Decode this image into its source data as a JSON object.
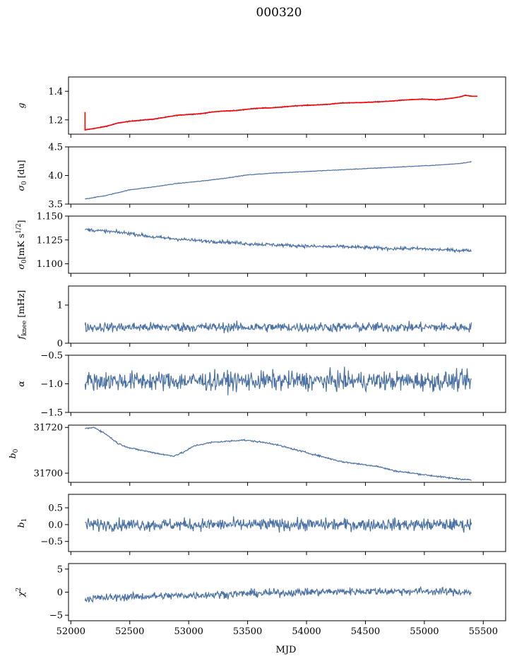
{
  "figure": {
    "title": "000320",
    "xlabel": "MJD",
    "x_ticks": [
      "52000",
      "52500",
      "53000",
      "53500",
      "54000",
      "54500",
      "55000",
      "55500"
    ]
  },
  "colors": {
    "series": "#4c72a4",
    "fit": "#ff0000",
    "axes": "#000000"
  },
  "chart_data": [
    {
      "type": "line",
      "key": "g",
      "ylabel": "g",
      "xlim": [
        51980,
        55690
      ],
      "ylim": [
        1.1,
        1.5
      ],
      "yticks": [
        1.2,
        1.4
      ],
      "ytick_labels": [
        "1.2",
        "1.4"
      ],
      "x": [
        52120,
        52200,
        52300,
        52400,
        52500,
        52600,
        52700,
        52800,
        52900,
        53000,
        53100,
        53200,
        53300,
        53400,
        53500,
        53600,
        53700,
        53800,
        53900,
        54000,
        54100,
        54200,
        54300,
        54400,
        54500,
        54600,
        54700,
        54800,
        54900,
        55000,
        55100,
        55200,
        55300,
        55350,
        55400
      ],
      "series": [
        {
          "kind": "data",
          "values": [
            1.13,
            1.14,
            1.155,
            1.178,
            1.19,
            1.198,
            1.205,
            1.218,
            1.232,
            1.238,
            1.243,
            1.255,
            1.262,
            1.265,
            1.275,
            1.282,
            1.284,
            1.29,
            1.298,
            1.302,
            1.305,
            1.31,
            1.318,
            1.32,
            1.322,
            1.326,
            1.33,
            1.337,
            1.342,
            1.345,
            1.34,
            1.348,
            1.36,
            1.372,
            1.365
          ],
          "noise": 0.003
        },
        {
          "kind": "fit",
          "values": [
            1.13,
            1.14,
            1.155,
            1.178,
            1.19,
            1.198,
            1.205,
            1.218,
            1.232,
            1.238,
            1.243,
            1.255,
            1.262,
            1.265,
            1.275,
            1.282,
            1.284,
            1.29,
            1.298,
            1.302,
            1.305,
            1.31,
            1.318,
            1.32,
            1.322,
            1.326,
            1.33,
            1.337,
            1.342,
            1.345,
            1.34,
            1.348,
            1.36,
            1.372,
            1.365
          ],
          "start_spike": [
            1.125,
            1.255
          ],
          "end_tail": [
            55420,
            55450,
            1.365
          ]
        }
      ]
    },
    {
      "type": "line",
      "key": "sigma0_du",
      "ylabel": "σ0 [du]",
      "xlim": [
        51980,
        55690
      ],
      "ylim": [
        3.5,
        4.5
      ],
      "yticks": [
        3.5,
        4.0,
        4.5
      ],
      "ytick_labels": [
        "3.5",
        "4.0",
        "4.5"
      ],
      "x": [
        52120,
        52300,
        52500,
        52700,
        52900,
        53100,
        53300,
        53500,
        53700,
        53900,
        54100,
        54300,
        54500,
        54700,
        54900,
        55100,
        55300,
        55400
      ],
      "series": [
        {
          "kind": "data",
          "values": [
            3.59,
            3.65,
            3.75,
            3.8,
            3.86,
            3.9,
            3.95,
            4.01,
            4.04,
            4.06,
            4.08,
            4.1,
            4.12,
            4.14,
            4.16,
            4.18,
            4.21,
            4.24
          ],
          "noise": 0.004
        }
      ]
    },
    {
      "type": "line",
      "key": "sigma0_mks",
      "ylabel": "σ0[mK s1/2]",
      "xlim": [
        51980,
        55690
      ],
      "ylim": [
        1.09,
        1.15
      ],
      "yticks": [
        1.1,
        1.125,
        1.15
      ],
      "ytick_labels": [
        "1.100",
        "1.125",
        "1.150"
      ],
      "x": [
        52120,
        52300,
        52500,
        52700,
        52900,
        53100,
        53300,
        53500,
        53700,
        53900,
        54100,
        54300,
        54500,
        54700,
        54900,
        55100,
        55300,
        55400
      ],
      "series": [
        {
          "kind": "data",
          "values": [
            1.136,
            1.134,
            1.132,
            1.128,
            1.126,
            1.124,
            1.123,
            1.121,
            1.12,
            1.119,
            1.118,
            1.118,
            1.117,
            1.116,
            1.116,
            1.115,
            1.114,
            1.114
          ],
          "noise": 0.0013
        }
      ]
    },
    {
      "type": "line",
      "key": "fknee",
      "ylabel": "fknee [mHz]",
      "xlim": [
        51980,
        55690
      ],
      "ylim": [
        0,
        1.5
      ],
      "yticks": [
        0,
        1
      ],
      "ytick_labels": [
        "0",
        "1"
      ],
      "x": [
        52120,
        55400
      ],
      "series": [
        {
          "kind": "data",
          "values": [
            0.42,
            0.42
          ],
          "noise": 0.09
        }
      ]
    },
    {
      "type": "line",
      "key": "alpha",
      "ylabel": "α",
      "xlim": [
        51980,
        55690
      ],
      "ylim": [
        -1.5,
        -0.5
      ],
      "yticks": [
        -1.5,
        -1.0,
        -0.5
      ],
      "ytick_labels": [
        "−1.5",
        "−1.0",
        "−0.5"
      ],
      "x": [
        52120,
        55400
      ],
      "series": [
        {
          "kind": "data",
          "values": [
            -0.95,
            -0.95
          ],
          "noise": 0.12
        }
      ]
    },
    {
      "type": "line",
      "key": "b0",
      "ylabel": "b0",
      "xlim": [
        51980,
        55690
      ],
      "ylim": [
        31696,
        31721
      ],
      "yticks": [
        31700,
        31720
      ],
      "ytick_labels": [
        "31700",
        "31720"
      ],
      "x": [
        52120,
        52200,
        52300,
        52400,
        52500,
        52600,
        52700,
        52800,
        52870,
        52950,
        53050,
        53200,
        53350,
        53450,
        53550,
        53700,
        53850,
        54000,
        54150,
        54300,
        54450,
        54600,
        54750,
        54900,
        55050,
        55200,
        55300,
        55400
      ],
      "series": [
        {
          "kind": "data",
          "values": [
            31719.5,
            31720,
            31717,
            31713,
            31711,
            31710,
            31709,
            31708,
            31707.5,
            31709,
            31712,
            31713.5,
            31714,
            31714.5,
            31714,
            31713,
            31711,
            31709,
            31707,
            31705,
            31704,
            31703,
            31701,
            31700,
            31699,
            31698,
            31697.5,
            31697
          ],
          "noise": 0.25
        }
      ]
    },
    {
      "type": "line",
      "key": "b1",
      "ylabel": "b1",
      "xlim": [
        51980,
        55690
      ],
      "ylim": [
        -0.8,
        0.9
      ],
      "yticks": [
        -0.5,
        0.0,
        0.5
      ],
      "ytick_labels": [
        "−0.5",
        "0.0",
        "0.5"
      ],
      "x": [
        52120,
        55400
      ],
      "series": [
        {
          "kind": "data",
          "values": [
            0.0,
            0.0
          ],
          "noise": 0.13
        }
      ]
    },
    {
      "type": "line",
      "key": "chi2",
      "ylabel": "χ2",
      "xlim": [
        51980,
        55690
      ],
      "ylim": [
        -6.2,
        6.2
      ],
      "yticks": [
        -5,
        0,
        5
      ],
      "ytick_labels": [
        "−5",
        "0",
        "5"
      ],
      "x": [
        52120,
        52500,
        53000,
        53500,
        54000,
        54500,
        55000,
        55400
      ],
      "series": [
        {
          "kind": "data",
          "values": [
            -1.4,
            -1.0,
            -0.7,
            -0.3,
            0.0,
            0.2,
            0.2,
            0.0
          ],
          "noise": 0.6
        }
      ]
    }
  ]
}
